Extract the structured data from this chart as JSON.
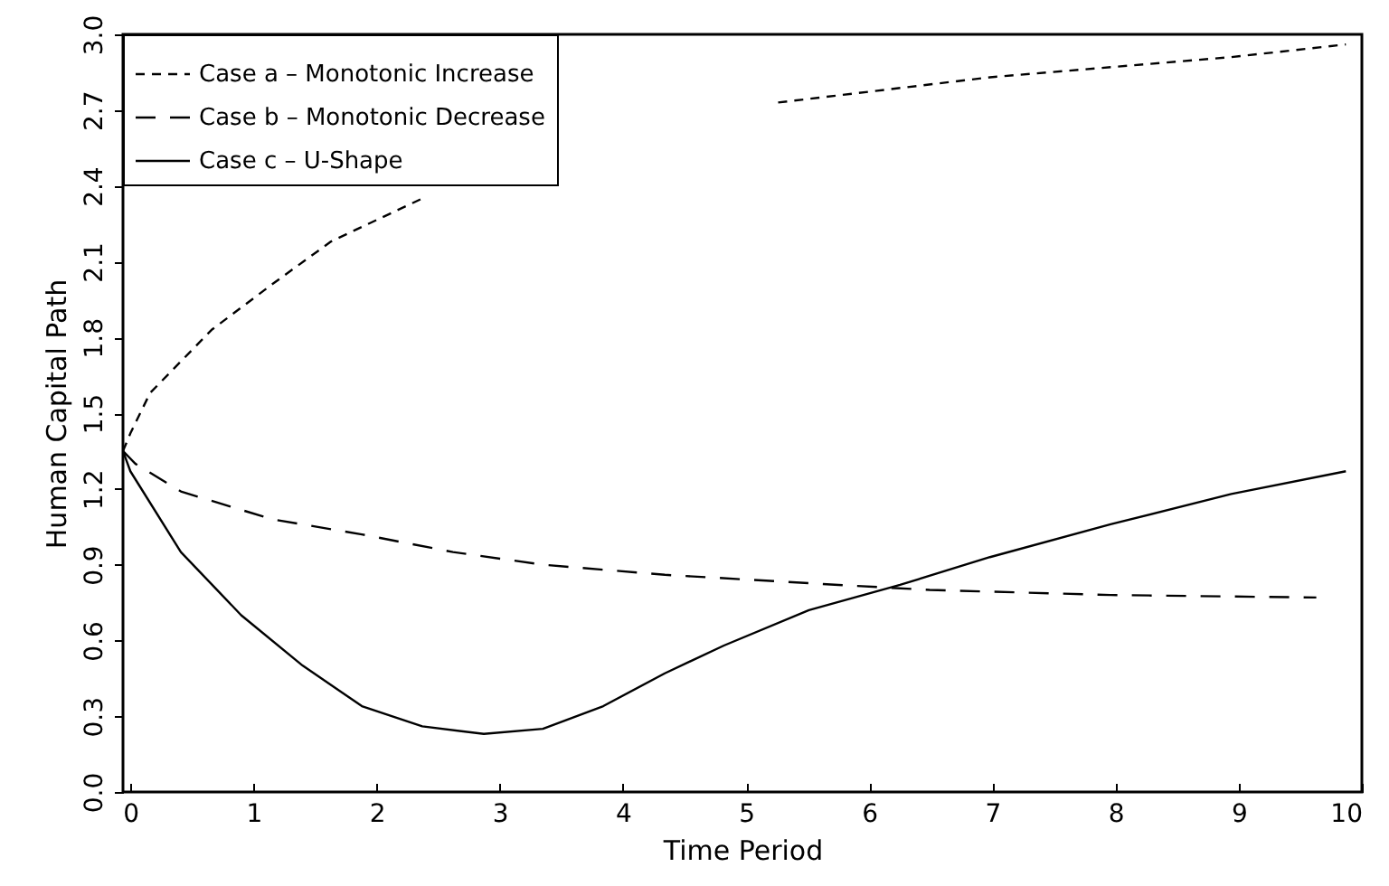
{
  "chart_data": {
    "type": "line",
    "xlabel": "Time Period",
    "ylabel": "Human Capital Path",
    "xlim": [
      -0.06,
      10
    ],
    "ylim": [
      0,
      3
    ],
    "xticks": [
      0,
      1,
      2,
      3,
      4,
      5,
      6,
      7,
      8,
      9,
      10
    ],
    "yticks": [
      {
        "value": 0,
        "label": "0.0"
      },
      0.3,
      0.6,
      0.9,
      1.2,
      1.5,
      1.8,
      2.1,
      2.4,
      2.7,
      {
        "value": 3,
        "label": "3.0"
      }
    ],
    "legend": "top left",
    "grid": false,
    "marker": "none",
    "series": [
      {
        "name": "Case a – Monotonic Increase",
        "color": "#000000",
        "line_style": "dashed",
        "x": [
          -0.06,
          0,
          0.16,
          0.66,
          1.15,
          1.63,
          2.37,
          3.5,
          5.26,
          6.98,
          8.94,
          9.87
        ],
        "values": [
          1.35,
          1.42,
          1.58,
          1.83,
          2.01,
          2.18,
          2.35,
          null,
          2.73,
          2.83,
          2.91,
          2.96
        ]
      },
      {
        "name": "Case b – Monotonic Decrease",
        "color": "#000000",
        "line_style": "dashed",
        "x": [
          -0.06,
          0.04,
          0.41,
          1.15,
          1.88,
          2.62,
          3.35,
          4.34,
          5.75,
          6.49,
          7.96,
          9.63
        ],
        "values": [
          1.35,
          1.3,
          1.19,
          1.08,
          1.02,
          0.95,
          0.9,
          0.86,
          0.82,
          0.8,
          0.78,
          0.77
        ]
      },
      {
        "name": "Case c – U-Shape",
        "color": "#000000",
        "line_style": "solid",
        "x": [
          -0.06,
          0,
          0.41,
          0.9,
          1.4,
          1.88,
          2.37,
          2.87,
          3.35,
          3.84,
          4.34,
          4.82,
          5.51,
          6.25,
          6.98,
          7.96,
          8.94,
          9.87
        ],
        "values": [
          1.35,
          1.27,
          0.95,
          0.7,
          0.5,
          0.34,
          0.26,
          0.23,
          0.25,
          0.34,
          0.47,
          0.58,
          0.72,
          0.82,
          0.93,
          1.06,
          1.18,
          1.27
        ]
      }
    ]
  }
}
